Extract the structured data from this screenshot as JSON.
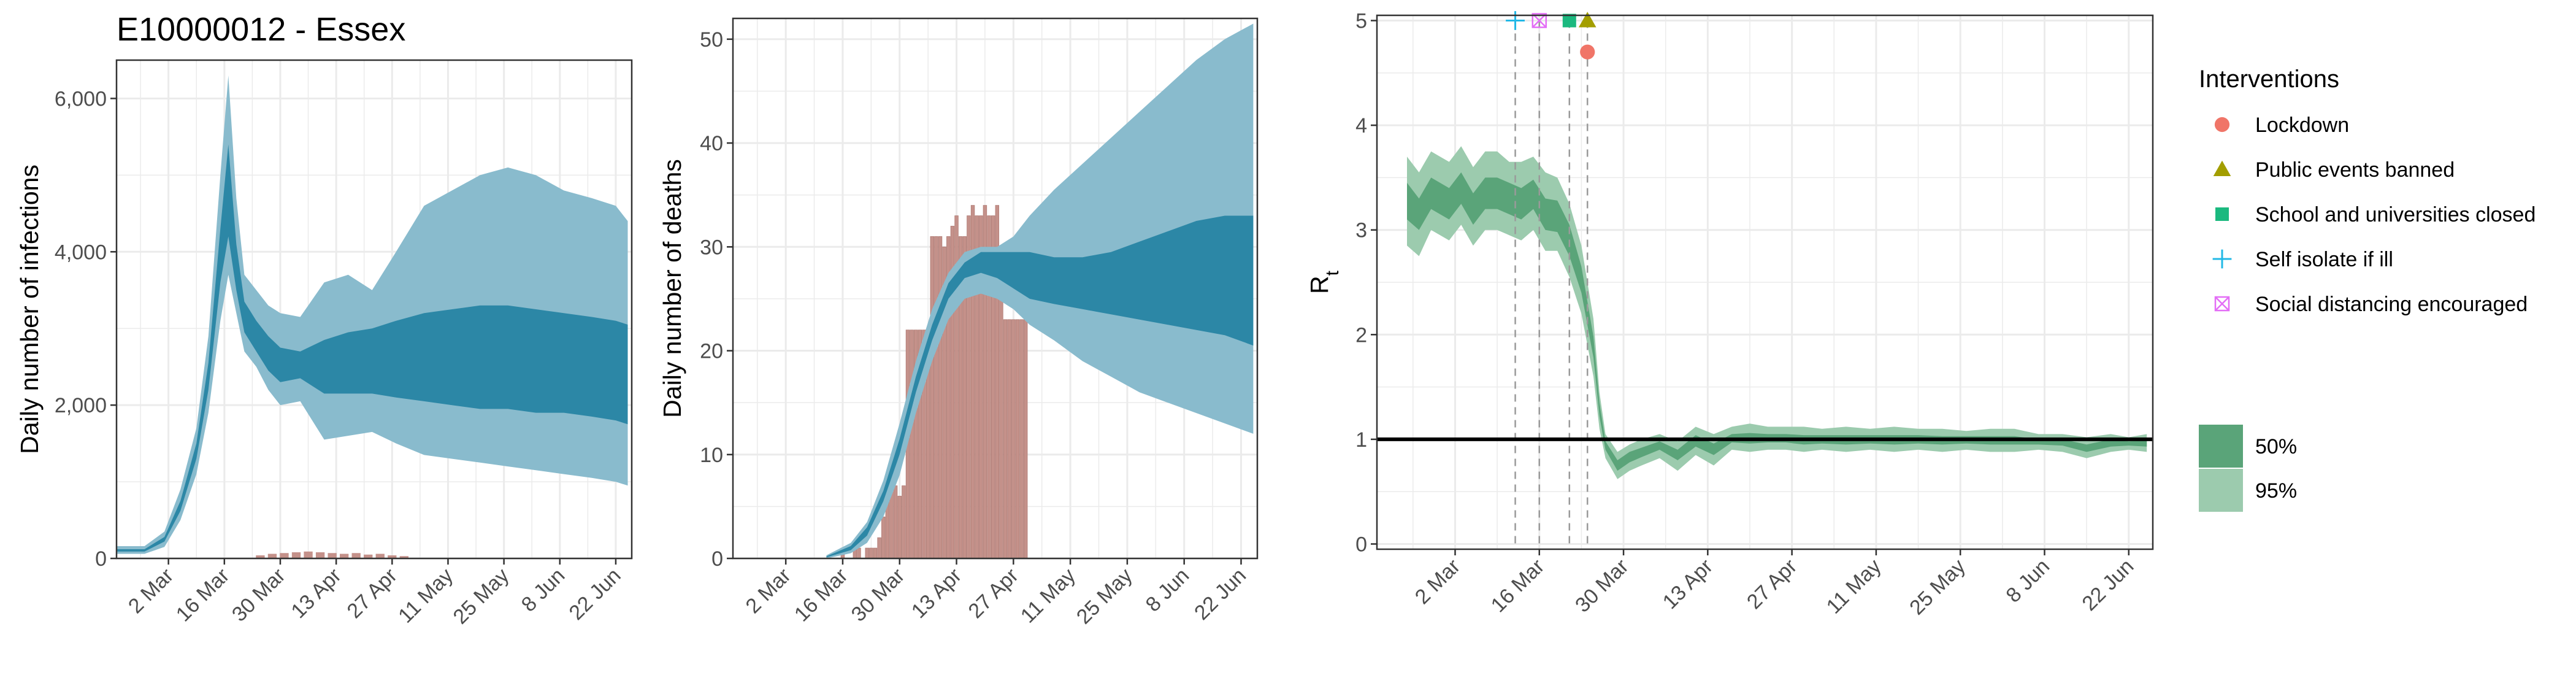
{
  "figure_title": "E10000012 - Essex",
  "colors": {
    "infections_band95": "#89BBCD",
    "infections_band50": "#2C87A6",
    "deaths_bars": "#C4918A",
    "rt_band95": "#9CCBAE",
    "rt_band50": "#5AA479",
    "lockdown": "#F07568",
    "public_events": "#A39E00",
    "school": "#1BB97F",
    "self_isolate": "#22B8E6",
    "social_distancing": "#E36EF6",
    "grid": "#EBEBEB"
  },
  "chart_data": [
    {
      "type": "area",
      "title": "E10000012 - Essex",
      "xlabel": "",
      "ylabel": "Daily number of infections",
      "x_range": [
        "2020-02-18",
        "2020-06-26"
      ],
      "xticks": [
        "2 Mar",
        "16 Mar",
        "30 Mar",
        "13 Apr",
        "27 Apr",
        "11 May",
        "25 May",
        "8 Jun",
        "22 Jun"
      ],
      "ylim": [
        0,
        6500
      ],
      "yticks": [
        0,
        2000,
        4000,
        6000
      ],
      "ytick_labels": [
        "0",
        "2,000",
        "4,000",
        "6,000"
      ],
      "grid": true,
      "series": [
        {
          "x": [
            "2020-02-18",
            "2020-02-25",
            "2020-03-01",
            "2020-03-05",
            "2020-03-09",
            "2020-03-12",
            "2020-03-15",
            "2020-03-17",
            "2020-03-19",
            "2020-03-21",
            "2020-03-24",
            "2020-03-27",
            "2020-03-30",
            "2020-04-04",
            "2020-04-10",
            "2020-04-16",
            "2020-04-22",
            "2020-04-28",
            "2020-05-05",
            "2020-05-12",
            "2020-05-19",
            "2020-05-26",
            "2020-06-02",
            "2020-06-09",
            "2020-06-16",
            "2020-06-22",
            "2020-06-25"
          ],
          "lower95": [
            60,
            60,
            150,
            500,
            1100,
            1900,
            3100,
            3700,
            3200,
            2700,
            2500,
            2200,
            2000,
            2050,
            1550,
            1600,
            1650,
            1500,
            1350,
            1300,
            1250,
            1200,
            1150,
            1100,
            1050,
            1000,
            950
          ],
          "upper95": [
            160,
            160,
            350,
            900,
            1700,
            2900,
            5000,
            6300,
            4700,
            3700,
            3500,
            3300,
            3200,
            3150,
            3600,
            3700,
            3500,
            4000,
            4600,
            4800,
            5000,
            5100,
            5000,
            4800,
            4700,
            4600,
            4400
          ],
          "lower50": [
            90,
            90,
            220,
            620,
            1300,
            2200,
            3600,
            4200,
            3500,
            2950,
            2700,
            2450,
            2300,
            2350,
            2150,
            2150,
            2150,
            2100,
            2050,
            2000,
            1950,
            1950,
            1900,
            1900,
            1850,
            1800,
            1750
          ],
          "upper50": [
            120,
            120,
            280,
            750,
            1500,
            2550,
            4300,
            5400,
            4100,
            3350,
            3100,
            2900,
            2750,
            2700,
            2850,
            2950,
            3000,
            3100,
            3200,
            3250,
            3300,
            3300,
            3250,
            3200,
            3150,
            3100,
            3050
          ]
        },
        {
          "name": "reported cases",
          "type": "bar",
          "x": [
            "2020-03-25",
            "2020-03-28",
            "2020-03-31",
            "2020-04-03",
            "2020-04-06",
            "2020-04-09",
            "2020-04-12",
            "2020-04-15",
            "2020-04-18",
            "2020-04-21",
            "2020-04-24",
            "2020-04-27",
            "2020-04-30"
          ],
          "values": [
            40,
            60,
            70,
            80,
            90,
            80,
            70,
            60,
            70,
            50,
            60,
            40,
            30
          ]
        }
      ]
    },
    {
      "type": "area",
      "xlabel": "",
      "ylabel": "Daily number of deaths",
      "x_range": [
        "2020-02-18",
        "2020-06-26"
      ],
      "xticks": [
        "2 Mar",
        "16 Mar",
        "30 Mar",
        "13 Apr",
        "27 Apr",
        "11 May",
        "25 May",
        "8 Jun",
        "22 Jun"
      ],
      "ylim": [
        0,
        52
      ],
      "yticks": [
        0,
        10,
        20,
        30,
        40,
        50
      ],
      "grid": true,
      "series": [
        {
          "x": [
            "2020-03-12",
            "2020-03-18",
            "2020-03-22",
            "2020-03-26",
            "2020-03-30",
            "2020-04-03",
            "2020-04-07",
            "2020-04-11",
            "2020-04-15",
            "2020-04-19",
            "2020-04-23",
            "2020-04-27",
            "2020-05-01",
            "2020-05-07",
            "2020-05-14",
            "2020-05-21",
            "2020-05-28",
            "2020-06-04",
            "2020-06-11",
            "2020-06-18",
            "2020-06-25"
          ],
          "lower95": [
            0,
            0.5,
            1.5,
            4,
            8,
            14,
            19,
            23,
            25,
            25.5,
            25,
            24,
            22.5,
            21,
            19,
            17.5,
            16,
            15,
            14,
            13,
            12
          ],
          "upper95": [
            0.3,
            1.5,
            3.5,
            7.5,
            13,
            19,
            24,
            27.5,
            29.5,
            30,
            30,
            31,
            33,
            35.5,
            38,
            40.5,
            43,
            45.5,
            48,
            50,
            51.5
          ],
          "lower50": [
            0.1,
            0.8,
            2.2,
            5.5,
            10,
            16,
            21,
            25,
            27,
            27.5,
            27,
            26,
            25,
            24.5,
            24,
            23.5,
            23,
            22.5,
            22,
            21.5,
            20.5
          ],
          "upper50": [
            0.2,
            1.2,
            3,
            6.5,
            11.5,
            17.5,
            22.5,
            26.5,
            28.5,
            29.5,
            29.5,
            29.5,
            29.5,
            29,
            29,
            29.5,
            30.5,
            31.5,
            32.5,
            33,
            33
          ]
        },
        {
          "name": "reported deaths",
          "type": "bar",
          "x": [
            "2020-03-16",
            "2020-03-19",
            "2020-03-20",
            "2020-03-22",
            "2020-03-23",
            "2020-03-24",
            "2020-03-25",
            "2020-03-26",
            "2020-03-27",
            "2020-03-28",
            "2020-03-29",
            "2020-03-30",
            "2020-03-31",
            "2020-04-01",
            "2020-04-02",
            "2020-04-03",
            "2020-04-04",
            "2020-04-05",
            "2020-04-06",
            "2020-04-07",
            "2020-04-08",
            "2020-04-09",
            "2020-04-10",
            "2020-04-11",
            "2020-04-12",
            "2020-04-13",
            "2020-04-14",
            "2020-04-15",
            "2020-04-16",
            "2020-04-17",
            "2020-04-18",
            "2020-04-19",
            "2020-04-20",
            "2020-04-21",
            "2020-04-22",
            "2020-04-23",
            "2020-04-24",
            "2020-04-25",
            "2020-04-26",
            "2020-04-27",
            "2020-04-28",
            "2020-04-29",
            "2020-04-30"
          ],
          "values": [
            1,
            1,
            1,
            1,
            1,
            1,
            2,
            4,
            6,
            7,
            7,
            6,
            7,
            22,
            22,
            22,
            22,
            22,
            22,
            31,
            31,
            31,
            30,
            31,
            32,
            33,
            31,
            31,
            33,
            34,
            33,
            33,
            34,
            33,
            33,
            34,
            28,
            23,
            23,
            23,
            23,
            23,
            23
          ]
        }
      ]
    },
    {
      "type": "area",
      "xlabel": "",
      "ylabel": "R",
      "ylabel_subscript": "t",
      "x_range": [
        "2020-02-18",
        "2020-06-26"
      ],
      "xticks": [
        "2 Mar",
        "16 Mar",
        "30 Mar",
        "13 Apr",
        "27 Apr",
        "11 May",
        "25 May",
        "8 Jun",
        "22 Jun"
      ],
      "ylim": [
        -0.05,
        5.05
      ],
      "yticks": [
        0,
        1,
        2,
        3,
        4,
        5
      ],
      "grid": true,
      "reference_line": 1,
      "intervention_lines": [
        "2020-03-12",
        "2020-03-16",
        "2020-03-21",
        "2020-03-24"
      ],
      "series": [
        {
          "x": [
            "2020-02-23",
            "2020-02-25",
            "2020-02-27",
            "2020-03-01",
            "2020-03-03",
            "2020-03-05",
            "2020-03-07",
            "2020-03-09",
            "2020-03-11",
            "2020-03-13",
            "2020-03-15",
            "2020-03-17",
            "2020-03-19",
            "2020-03-21",
            "2020-03-23",
            "2020-03-25",
            "2020-03-26",
            "2020-03-27",
            "2020-03-29",
            "2020-03-31",
            "2020-04-02",
            "2020-04-05",
            "2020-04-08",
            "2020-04-11",
            "2020-04-14",
            "2020-04-17",
            "2020-04-20",
            "2020-04-23",
            "2020-04-26",
            "2020-04-29",
            "2020-05-02",
            "2020-05-06",
            "2020-05-10",
            "2020-05-14",
            "2020-05-18",
            "2020-05-22",
            "2020-05-26",
            "2020-05-30",
            "2020-06-03",
            "2020-06-07",
            "2020-06-11",
            "2020-06-15",
            "2020-06-19",
            "2020-06-22",
            "2020-06-25"
          ],
          "lower95": [
            2.85,
            2.75,
            3.0,
            2.9,
            3.05,
            2.85,
            3.0,
            3.0,
            2.95,
            2.9,
            3.0,
            2.8,
            2.8,
            2.55,
            2.2,
            1.6,
            1.1,
            0.82,
            0.62,
            0.7,
            0.75,
            0.82,
            0.7,
            0.85,
            0.75,
            0.9,
            0.88,
            0.9,
            0.9,
            0.88,
            0.9,
            0.88,
            0.9,
            0.88,
            0.9,
            0.88,
            0.9,
            0.88,
            0.88,
            0.9,
            0.88,
            0.82,
            0.88,
            0.9,
            0.88
          ],
          "upper95": [
            3.7,
            3.55,
            3.75,
            3.65,
            3.8,
            3.6,
            3.75,
            3.75,
            3.65,
            3.65,
            3.7,
            3.55,
            3.5,
            3.25,
            2.85,
            2.15,
            1.45,
            1.05,
            0.88,
            0.95,
            1.0,
            1.05,
            0.98,
            1.12,
            1.05,
            1.12,
            1.15,
            1.12,
            1.12,
            1.12,
            1.1,
            1.12,
            1.1,
            1.12,
            1.1,
            1.1,
            1.08,
            1.1,
            1.1,
            1.05,
            1.05,
            1.02,
            1.05,
            1.02,
            1.05
          ],
          "lower50": [
            3.1,
            3.0,
            3.2,
            3.1,
            3.25,
            3.05,
            3.2,
            3.2,
            3.15,
            3.1,
            3.2,
            3.0,
            2.98,
            2.75,
            2.4,
            1.78,
            1.22,
            0.9,
            0.7,
            0.78,
            0.83,
            0.9,
            0.8,
            0.93,
            0.85,
            0.97,
            0.96,
            0.97,
            0.97,
            0.95,
            0.96,
            0.95,
            0.96,
            0.95,
            0.96,
            0.95,
            0.96,
            0.95,
            0.95,
            0.95,
            0.94,
            0.88,
            0.93,
            0.94,
            0.93
          ],
          "upper50": [
            3.45,
            3.3,
            3.5,
            3.4,
            3.55,
            3.35,
            3.5,
            3.5,
            3.45,
            3.4,
            3.48,
            3.3,
            3.28,
            3.05,
            2.65,
            1.98,
            1.35,
            0.98,
            0.8,
            0.88,
            0.92,
            0.98,
            0.9,
            1.04,
            0.96,
            1.05,
            1.06,
            1.05,
            1.05,
            1.04,
            1.04,
            1.04,
            1.04,
            1.04,
            1.04,
            1.03,
            1.03,
            1.03,
            1.03,
            1.0,
            1.0,
            0.95,
            1.0,
            0.98,
            0.99
          ]
        }
      ],
      "interventions": [
        {
          "name": "Self isolate if ill",
          "date": "2020-03-12",
          "y": 5.0,
          "shape": "plus",
          "color_key": "self_isolate"
        },
        {
          "name": "Social distancing encouraged",
          "date": "2020-03-16",
          "y": 5.0,
          "shape": "square-x",
          "color_key": "social_distancing"
        },
        {
          "name": "School and universities closed",
          "date": "2020-03-21",
          "y": 5.0,
          "shape": "square",
          "color_key": "school"
        },
        {
          "name": "Public events banned",
          "date": "2020-03-24",
          "y": 5.0,
          "shape": "triangle",
          "color_key": "public_events"
        },
        {
          "name": "Lockdown",
          "date": "2020-03-24",
          "y": 4.7,
          "shape": "circle",
          "color_key": "lockdown"
        }
      ]
    }
  ],
  "legend": {
    "title": "Interventions",
    "items": [
      {
        "label": "Lockdown",
        "shape": "circle",
        "color_key": "lockdown"
      },
      {
        "label": "Public events banned",
        "shape": "triangle",
        "color_key": "public_events"
      },
      {
        "label": "School and universities closed",
        "shape": "square",
        "color_key": "school"
      },
      {
        "label": "Self isolate if ill",
        "shape": "plus",
        "color_key": "self_isolate"
      },
      {
        "label": "Social distancing encouraged",
        "shape": "square-x",
        "color_key": "social_distancing"
      }
    ],
    "bands": [
      {
        "label": "50%",
        "color_key": "rt_band50"
      },
      {
        "label": "95%",
        "color_key": "rt_band95"
      }
    ]
  }
}
